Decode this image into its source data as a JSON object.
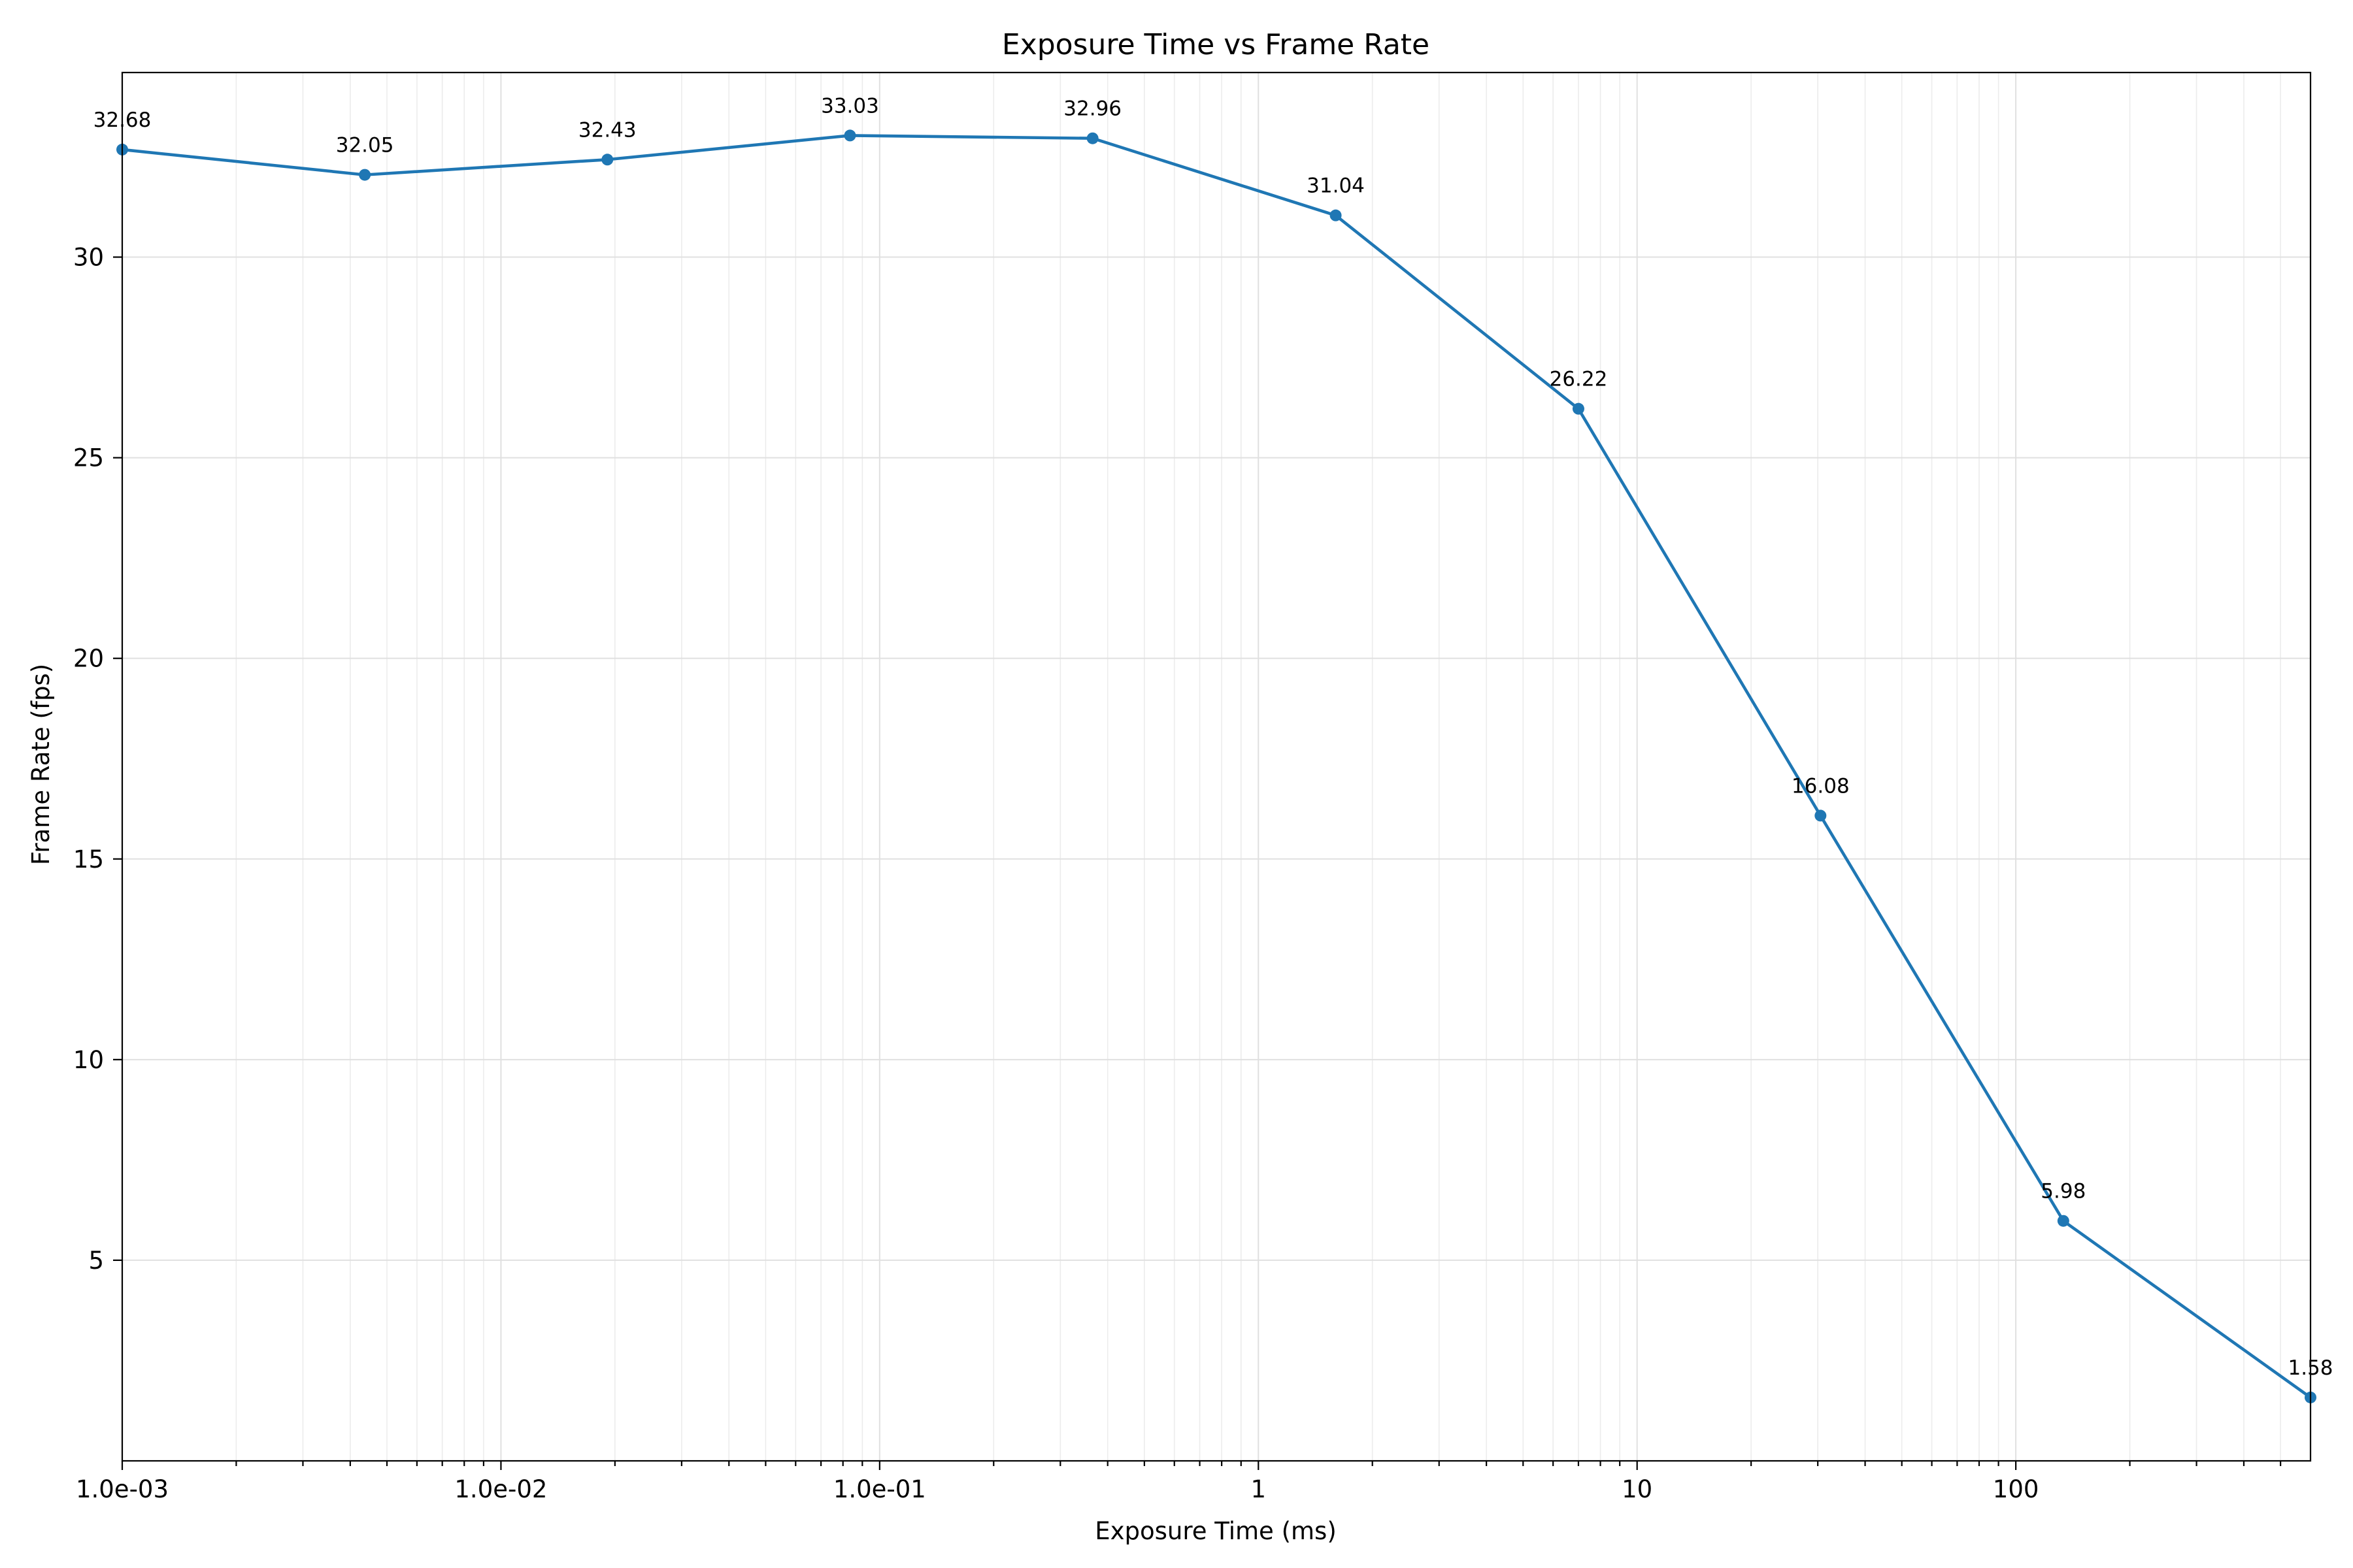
{
  "chart_data": {
    "type": "line",
    "title": "Exposure Time vs Frame Rate",
    "xlabel": "Exposure Time (ms)",
    "ylabel": "Frame Rate (fps)",
    "x_scale": "log",
    "xlim": [
      0.001,
      600
    ],
    "ylim": [
      0,
      34.6
    ],
    "grid": true,
    "x_ticks": [
      {
        "value": 0.001,
        "label": "1.0e-03"
      },
      {
        "value": 0.01,
        "label": "1.0e-02"
      },
      {
        "value": 0.1,
        "label": "1.0e-01"
      },
      {
        "value": 1,
        "label": "1"
      },
      {
        "value": 10,
        "label": "10"
      },
      {
        "value": 100,
        "label": "100"
      }
    ],
    "y_ticks": [
      {
        "value": 5,
        "label": "5"
      },
      {
        "value": 10,
        "label": "10"
      },
      {
        "value": 15,
        "label": "15"
      },
      {
        "value": 20,
        "label": "20"
      },
      {
        "value": 25,
        "label": "25"
      },
      {
        "value": 30,
        "label": "30"
      }
    ],
    "series": [
      {
        "color": "#1f77b4",
        "x": [
          0.001,
          0.00437,
          0.0191,
          0.0835,
          0.365,
          1.6,
          7.0,
          30.5,
          133.5,
          600
        ],
        "y": [
          32.68,
          32.05,
          32.43,
          33.03,
          32.96,
          31.04,
          26.22,
          16.08,
          5.98,
          1.58
        ],
        "labels": [
          "32.68",
          "32.05",
          "32.43",
          "33.03",
          "32.96",
          "31.04",
          "26.22",
          "16.08",
          "5.98",
          "1.58"
        ]
      }
    ]
  }
}
